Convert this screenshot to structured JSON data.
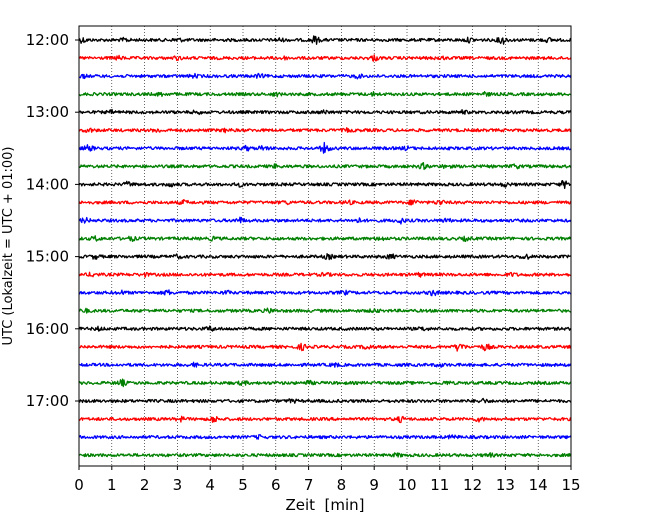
{
  "chart_data": {
    "type": "line",
    "title": "",
    "xlabel": "Zeit  [min]",
    "ylabel": "UTC (Lokalzeit = UTC + 01:00)",
    "xlim": [
      0,
      15
    ],
    "x_ticks": [
      0,
      1,
      2,
      3,
      4,
      5,
      6,
      7,
      8,
      9,
      10,
      11,
      12,
      13,
      14,
      15
    ],
    "y_tick_labels": [
      "12:00",
      "13:00",
      "14:00",
      "15:00",
      "16:00",
      "17:00"
    ],
    "start_time": "12:00",
    "trace_interval_min": 15,
    "colors": [
      "#000000",
      "#ff0000",
      "#0000ff",
      "#008000"
    ],
    "grid": "vertical dotted",
    "legend": "none",
    "traces": [
      {
        "start": "12:00",
        "color": "#000000",
        "events": [
          [
            0.1,
            2
          ],
          [
            1.4,
            1.4
          ],
          [
            3.0,
            1.5
          ],
          [
            6.1,
            1.4
          ],
          [
            7.2,
            3.2
          ],
          [
            11.9,
            1.6
          ],
          [
            12.9,
            3.4
          ],
          [
            14.3,
            1.4
          ]
        ]
      },
      {
        "start": "12:15",
        "color": "#ff0000",
        "events": [
          [
            1.2,
            1.3
          ],
          [
            3.0,
            1.2
          ],
          [
            6.2,
            1.2
          ],
          [
            9.0,
            2.2
          ],
          [
            11.0,
            1.2
          ]
        ]
      },
      {
        "start": "12:30",
        "color": "#0000ff",
        "events": [
          [
            0.1,
            1.3
          ],
          [
            3.5,
            1.2
          ],
          [
            5.5,
            1.3
          ],
          [
            8.5,
            1.4
          ]
        ]
      },
      {
        "start": "12:45",
        "color": "#008000",
        "events": [
          [
            2.5,
            1.2
          ],
          [
            6.0,
            1.3
          ],
          [
            9.0,
            1.2
          ],
          [
            12.4,
            1.2
          ]
        ]
      },
      {
        "start": "13:00",
        "color": "#000000",
        "events": [
          [
            1.0,
            1.2
          ],
          [
            3.6,
            1.2
          ],
          [
            7.5,
            1.2
          ],
          [
            11.7,
            1.2
          ]
        ]
      },
      {
        "start": "13:15",
        "color": "#ff0000",
        "events": [
          [
            0.3,
            1.4
          ],
          [
            2.4,
            1.3
          ],
          [
            4.5,
            1.3
          ],
          [
            8.2,
            1.2
          ]
        ]
      },
      {
        "start": "13:30",
        "color": "#0000ff",
        "events": [
          [
            0.3,
            2.5
          ],
          [
            5.1,
            1.6
          ],
          [
            5.6,
            1.8
          ],
          [
            7.5,
            4.5
          ],
          [
            10.0,
            1.2
          ]
        ]
      },
      {
        "start": "13:45",
        "color": "#008000",
        "events": [
          [
            6.0,
            1.2
          ],
          [
            10.5,
            2.2
          ],
          [
            11.2,
            1.4
          ],
          [
            13.3,
            1.5
          ]
        ]
      },
      {
        "start": "14:00",
        "color": "#000000",
        "events": [
          [
            1.5,
            1.8
          ],
          [
            2.8,
            1.4
          ],
          [
            4.9,
            1.3
          ],
          [
            13.0,
            1.4
          ],
          [
            14.8,
            3.0
          ]
        ]
      },
      {
        "start": "14:15",
        "color": "#ff0000",
        "events": [
          [
            3.2,
            1.5
          ],
          [
            6.3,
            1.2
          ],
          [
            8.2,
            1.4
          ],
          [
            10.2,
            2.4
          ],
          [
            11.0,
            1.8
          ]
        ]
      },
      {
        "start": "14:30",
        "color": "#0000ff",
        "events": [
          [
            0.2,
            1.8
          ],
          [
            4.9,
            2.2
          ],
          [
            8.5,
            1.6
          ],
          [
            9.8,
            2.0
          ],
          [
            11.2,
            1.3
          ]
        ]
      },
      {
        "start": "14:45",
        "color": "#008000",
        "events": [
          [
            0.5,
            1.6
          ],
          [
            1.6,
            1.5
          ],
          [
            4.1,
            1.2
          ],
          [
            9.2,
            1.4
          ],
          [
            11.8,
            1.4
          ]
        ]
      },
      {
        "start": "15:00",
        "color": "#000000",
        "events": [
          [
            0.5,
            1.5
          ],
          [
            3.0,
            1.3
          ],
          [
            7.6,
            1.8
          ],
          [
            9.5,
            1.8
          ],
          [
            13.6,
            2.2
          ]
        ]
      },
      {
        "start": "15:15",
        "color": "#ff0000",
        "events": [
          [
            0.4,
            1.4
          ],
          [
            2.0,
            1.2
          ],
          [
            7.5,
            1.3
          ],
          [
            10.4,
            1.2
          ],
          [
            13.2,
            1.2
          ]
        ]
      },
      {
        "start": "15:30",
        "color": "#0000ff",
        "events": [
          [
            1.3,
            1.3
          ],
          [
            2.7,
            1.8
          ],
          [
            4.5,
            1.2
          ],
          [
            8.1,
            1.3
          ],
          [
            10.8,
            2.2
          ]
        ]
      },
      {
        "start": "15:45",
        "color": "#008000",
        "events": [
          [
            0.2,
            1.2
          ],
          [
            5.8,
            1.6
          ],
          [
            9.0,
            1.2
          ]
        ]
      },
      {
        "start": "16:00",
        "color": "#000000",
        "events": [
          [
            0.6,
            1.2
          ],
          [
            4.0,
            1.8
          ],
          [
            10.5,
            1.2
          ]
        ]
      },
      {
        "start": "16:15",
        "color": "#ff0000",
        "events": [
          [
            6.8,
            2.4
          ],
          [
            8.8,
            2.0
          ],
          [
            11.6,
            4.0
          ],
          [
            12.4,
            2.6
          ]
        ]
      },
      {
        "start": "16:30",
        "color": "#0000ff",
        "events": [
          [
            3.5,
            1.2
          ],
          [
            7.8,
            1.2
          ],
          [
            11.0,
            1.2
          ]
        ]
      },
      {
        "start": "16:45",
        "color": "#008000",
        "events": [
          [
            1.3,
            2.6
          ],
          [
            5.0,
            1.4
          ],
          [
            7.0,
            1.4
          ],
          [
            11.2,
            1.2
          ]
        ]
      },
      {
        "start": "17:00",
        "color": "#000000",
        "events": [
          [
            6.5,
            1.2
          ],
          [
            12.3,
            1.6
          ]
        ]
      },
      {
        "start": "17:15",
        "color": "#ff0000",
        "events": [
          [
            3.1,
            1.6
          ],
          [
            4.1,
            2.6
          ],
          [
            9.8,
            2.0
          ],
          [
            12.2,
            1.6
          ]
        ]
      },
      {
        "start": "17:30",
        "color": "#0000ff",
        "events": [
          [
            5.5,
            1.2
          ],
          [
            11.4,
            1.2
          ]
        ]
      },
      {
        "start": "17:45",
        "color": "#008000",
        "events": [
          [
            9.7,
            1.2
          ],
          [
            12.5,
            1.3
          ]
        ]
      }
    ]
  }
}
